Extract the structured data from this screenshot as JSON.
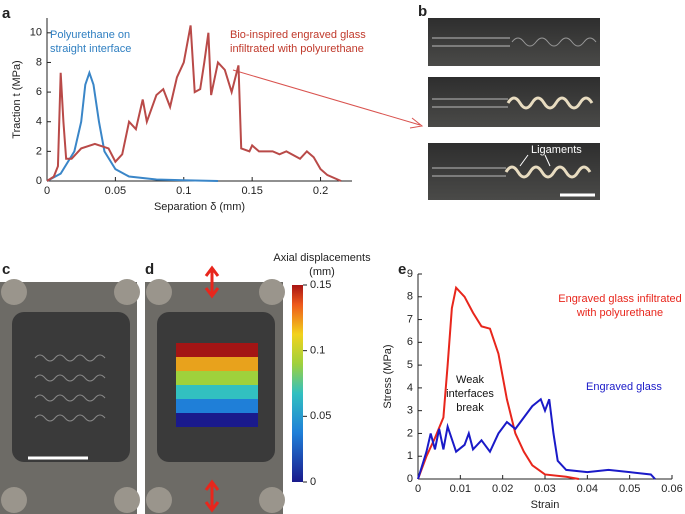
{
  "figure": {
    "panel_labels": [
      "a",
      "b",
      "c",
      "d",
      "e"
    ],
    "ligaments": "Ligaments",
    "colorbar": {
      "title": [
        "Axial displacements",
        "(mm)"
      ],
      "lim": [
        0,
        0.15
      ],
      "ticks": [
        0,
        0.05,
        0.1,
        0.15
      ]
    }
  },
  "chart_data": [
    {
      "type": "line",
      "xlabel": "Separation δ (mm)",
      "ylabel": "Traction t (MPa)",
      "xlim": [
        0,
        0.223
      ],
      "ylim": [
        0,
        11
      ],
      "xticks": [
        0,
        0.05,
        0.1,
        0.15,
        0.2
      ],
      "yticks": [
        0,
        2,
        4,
        6,
        8,
        10
      ],
      "annotations": [
        {
          "lines": [
            "Polyurethane on",
            "straight interface"
          ],
          "color": "#2f7fc1"
        },
        {
          "lines": [
            "Bio-inspired engraved glass",
            "infiltrated with polyurethane"
          ],
          "color": "#c0392b"
        }
      ],
      "series": [
        {
          "color": "#3a86c8",
          "x": [
            0,
            0.01,
            0.02,
            0.025,
            0.028,
            0.031,
            0.034,
            0.038,
            0.042,
            0.05,
            0.06,
            0.08,
            0.1,
            0.125
          ],
          "values": [
            0,
            0.5,
            2,
            4,
            6.5,
            7.3,
            6.5,
            4,
            2,
            0.8,
            0.3,
            0.1,
            0.05,
            0
          ]
        },
        {
          "color": "#b94a48",
          "x": [
            0,
            0.005,
            0.008,
            0.01,
            0.012,
            0.014,
            0.018,
            0.025,
            0.035,
            0.045,
            0.05,
            0.055,
            0.06,
            0.065,
            0.07,
            0.073,
            0.08,
            0.085,
            0.09,
            0.095,
            0.1,
            0.105,
            0.108,
            0.112,
            0.115,
            0.118,
            0.12,
            0.125,
            0.13,
            0.135,
            0.14,
            0.142,
            0.148,
            0.15,
            0.155,
            0.165,
            0.17,
            0.175,
            0.185,
            0.19,
            0.195,
            0.2,
            0.205,
            0.215
          ],
          "values": [
            0,
            0.3,
            1,
            7.3,
            4,
            1.5,
            1.5,
            2.2,
            2.5,
            2.2,
            1.3,
            1.8,
            4,
            3.5,
            5.5,
            4,
            5.8,
            6.2,
            5,
            7,
            8,
            10.5,
            6,
            6.2,
            8,
            10,
            5.8,
            8,
            7.5,
            6,
            7.8,
            2.2,
            2,
            2.4,
            2,
            2,
            1.8,
            2,
            1.5,
            2,
            1.6,
            0.8,
            0.4,
            0
          ]
        }
      ]
    },
    {
      "type": "line",
      "xlabel": "Strain",
      "ylabel": "Stress (MPa)",
      "xlim": [
        0,
        0.06
      ],
      "ylim": [
        0,
        9
      ],
      "xticks": [
        0,
        0.01,
        0.02,
        0.03,
        0.04,
        0.05,
        0.06
      ],
      "yticks": [
        0,
        1,
        2,
        3,
        4,
        5,
        6,
        7,
        8,
        9
      ],
      "annotations": [
        {
          "lines": [
            "Engraved glass infiltrated",
            "with polyurethane"
          ],
          "color": "#e8261c"
        },
        {
          "lines": [
            "Engraved glass"
          ],
          "color": "#1a1ac8"
        },
        {
          "lines": [
            "Weak",
            "interfaces",
            "break"
          ],
          "color": "#111111"
        }
      ],
      "series": [
        {
          "color": "#e8261c",
          "x": [
            0,
            0.002,
            0.004,
            0.006,
            0.007,
            0.008,
            0.009,
            0.011,
            0.013,
            0.015,
            0.017,
            0.019,
            0.021,
            0.023,
            0.025,
            0.027,
            0.03,
            0.035,
            0.038
          ],
          "values": [
            0,
            1,
            1.8,
            2.7,
            5,
            7.5,
            8.4,
            8,
            7.3,
            6.7,
            6.6,
            5.5,
            3.5,
            2,
            1.2,
            0.6,
            0.2,
            0.1,
            0
          ]
        },
        {
          "color": "#1a1ac8",
          "x": [
            0,
            0.002,
            0.003,
            0.004,
            0.005,
            0.006,
            0.007,
            0.009,
            0.011,
            0.012,
            0.013,
            0.015,
            0.017,
            0.019,
            0.021,
            0.023,
            0.025,
            0.027,
            0.029,
            0.03,
            0.031,
            0.032,
            0.033,
            0.035,
            0.04,
            0.045,
            0.05,
            0.055,
            0.056
          ],
          "values": [
            0,
            1.2,
            2,
            1.3,
            2.2,
            1.3,
            2.3,
            1.2,
            1.5,
            2,
            1.3,
            1.7,
            1.2,
            2,
            2.5,
            2.2,
            2.7,
            3.2,
            3.5,
            3,
            3.5,
            2,
            0.8,
            0.4,
            0.3,
            0.4,
            0.3,
            0.2,
            0
          ]
        }
      ]
    }
  ]
}
